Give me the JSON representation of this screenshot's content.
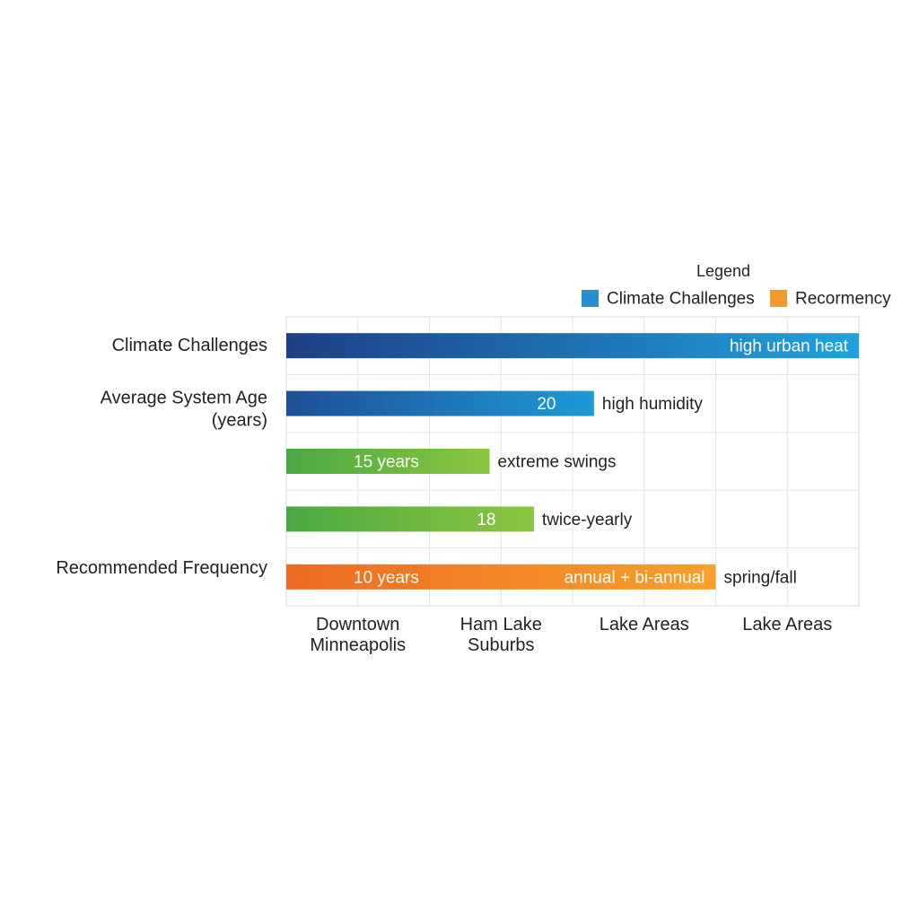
{
  "chart_data": {
    "type": "bar",
    "orientation": "horizontal",
    "legend": {
      "title": "Legend",
      "placement": "top-right",
      "items": [
        {
          "label": "Climate Challenges",
          "color": "#2a8fcf"
        },
        {
          "label": "Recormency",
          "color": "#f39a2b"
        }
      ]
    },
    "x_categories": [
      "Downtown Minneapolis",
      "Ham Lake Suburbs",
      "Lake Areas",
      "Lake Areas"
    ],
    "xlim": [
      0,
      4
    ],
    "grid": true,
    "bars": [
      {
        "row_label": "Climate Challenges",
        "value": 4.0,
        "color_start": "#1e3f86",
        "color_end": "#1fa3dd",
        "inner_label": "",
        "end_label": "high urban heat",
        "after_label": ""
      },
      {
        "row_label": "Average System Age\n(years)",
        "value": 2.15,
        "color_start": "#1e4f96",
        "color_end": "#1e9ad6",
        "inner_label": "",
        "end_label": "20",
        "after_label": "high humidity"
      },
      {
        "row_label": "",
        "value": 1.42,
        "color_start": "#4aa843",
        "color_end": "#8cc63f",
        "inner_label": "15 years",
        "end_label": "",
        "after_label": "extreme swings"
      },
      {
        "row_label": "",
        "value": 1.73,
        "color_start": "#4aa843",
        "color_end": "#8cc63f",
        "inner_label": "",
        "end_label": "18",
        "after_label": "twice-yearly"
      },
      {
        "row_label": "Recommended Frequency",
        "value": 3.0,
        "color_start": "#ee6a22",
        "color_end": "#f7a12a",
        "inner_label": "10 years",
        "end_label": "annual + bi-annual",
        "after_label": "spring/fall"
      }
    ]
  }
}
